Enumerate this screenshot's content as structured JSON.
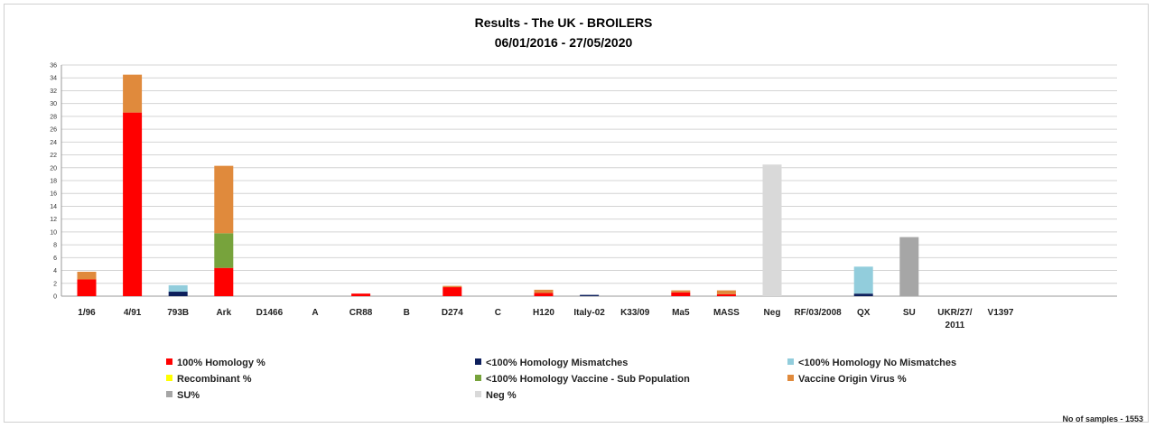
{
  "chart_data": {
    "type": "bar",
    "stacked": true,
    "title": "Results - The UK - BROILERS",
    "subtitle": "06/01/2016 - 27/05/2020",
    "xlabel": "",
    "ylabel": "",
    "ylim": [
      0,
      36
    ],
    "yticks": [
      0,
      2,
      4,
      6,
      8,
      10,
      12,
      14,
      16,
      18,
      20,
      22,
      24,
      26,
      28,
      30,
      32,
      34,
      36
    ],
    "grid": true,
    "legend_position": "bottom",
    "categories": [
      "1/96",
      "4/91",
      "793B",
      "Ark",
      "D1466",
      "A",
      "CR88",
      "B",
      "D274",
      "C",
      "H120",
      "Italy-02",
      "K33/09",
      "Ma5",
      "MASS",
      "Neg",
      "RF/03/2008",
      "QX",
      "SU",
      "UKR/27/\n2011",
      "V1397"
    ],
    "series": [
      {
        "name": "100% Homology %",
        "color": "#ff0000",
        "values": [
          2.6,
          28.6,
          0,
          4.4,
          0,
          0,
          0.4,
          0,
          1.4,
          0,
          0.5,
          0,
          0,
          0.6,
          0.3,
          0,
          0,
          0,
          0,
          0,
          0
        ]
      },
      {
        "name": "<100% Homology Mismatches",
        "color": "#0d1f5c",
        "values": [
          0,
          0,
          0.7,
          0,
          0,
          0,
          0,
          0,
          0,
          0,
          0,
          0.2,
          0,
          0,
          0,
          0,
          0,
          0.4,
          0,
          0,
          0
        ]
      },
      {
        "name": "<100% Homology No Mismatches",
        "color": "#92cddc",
        "values": [
          0,
          0,
          1.0,
          0,
          0,
          0,
          0,
          0,
          0,
          0,
          0,
          0,
          0,
          0,
          0,
          0,
          0,
          4.2,
          0,
          0,
          0
        ]
      },
      {
        "name": "Recombinant %",
        "color": "#ffff00",
        "values": [
          0,
          0,
          0,
          0,
          0,
          0,
          0,
          0,
          0,
          0,
          0,
          0,
          0,
          0,
          0,
          0,
          0,
          0,
          0,
          0,
          0
        ]
      },
      {
        "name": "<100% Homology Vaccine - Sub Population",
        "color": "#77a33c",
        "values": [
          0,
          0,
          0,
          5.4,
          0,
          0,
          0,
          0,
          0,
          0,
          0,
          0,
          0,
          0,
          0,
          0,
          0,
          0,
          0,
          0,
          0
        ]
      },
      {
        "name": "Vaccine Origin Virus %",
        "color": "#e08a3c",
        "values": [
          1.2,
          5.9,
          0,
          10.5,
          0,
          0,
          0,
          0,
          0.2,
          0,
          0.5,
          0,
          0,
          0.3,
          0.6,
          0,
          0,
          0,
          0,
          0,
          0
        ]
      },
      {
        "name": "SU%",
        "color": "#a6a6a6",
        "values": [
          0,
          0,
          0,
          0,
          0,
          0,
          0,
          0,
          0,
          0,
          0,
          0,
          0,
          0,
          0,
          0,
          0,
          0,
          9.2,
          0,
          0
        ]
      },
      {
        "name": "Neg %",
        "color": "#d9d9d9",
        "values": [
          0,
          0,
          0,
          0,
          0,
          0,
          0,
          0,
          0,
          0,
          0,
          0,
          0,
          0,
          0,
          20.5,
          0,
          0,
          0,
          0,
          0
        ]
      }
    ],
    "footer": "No of samples - 1553"
  }
}
